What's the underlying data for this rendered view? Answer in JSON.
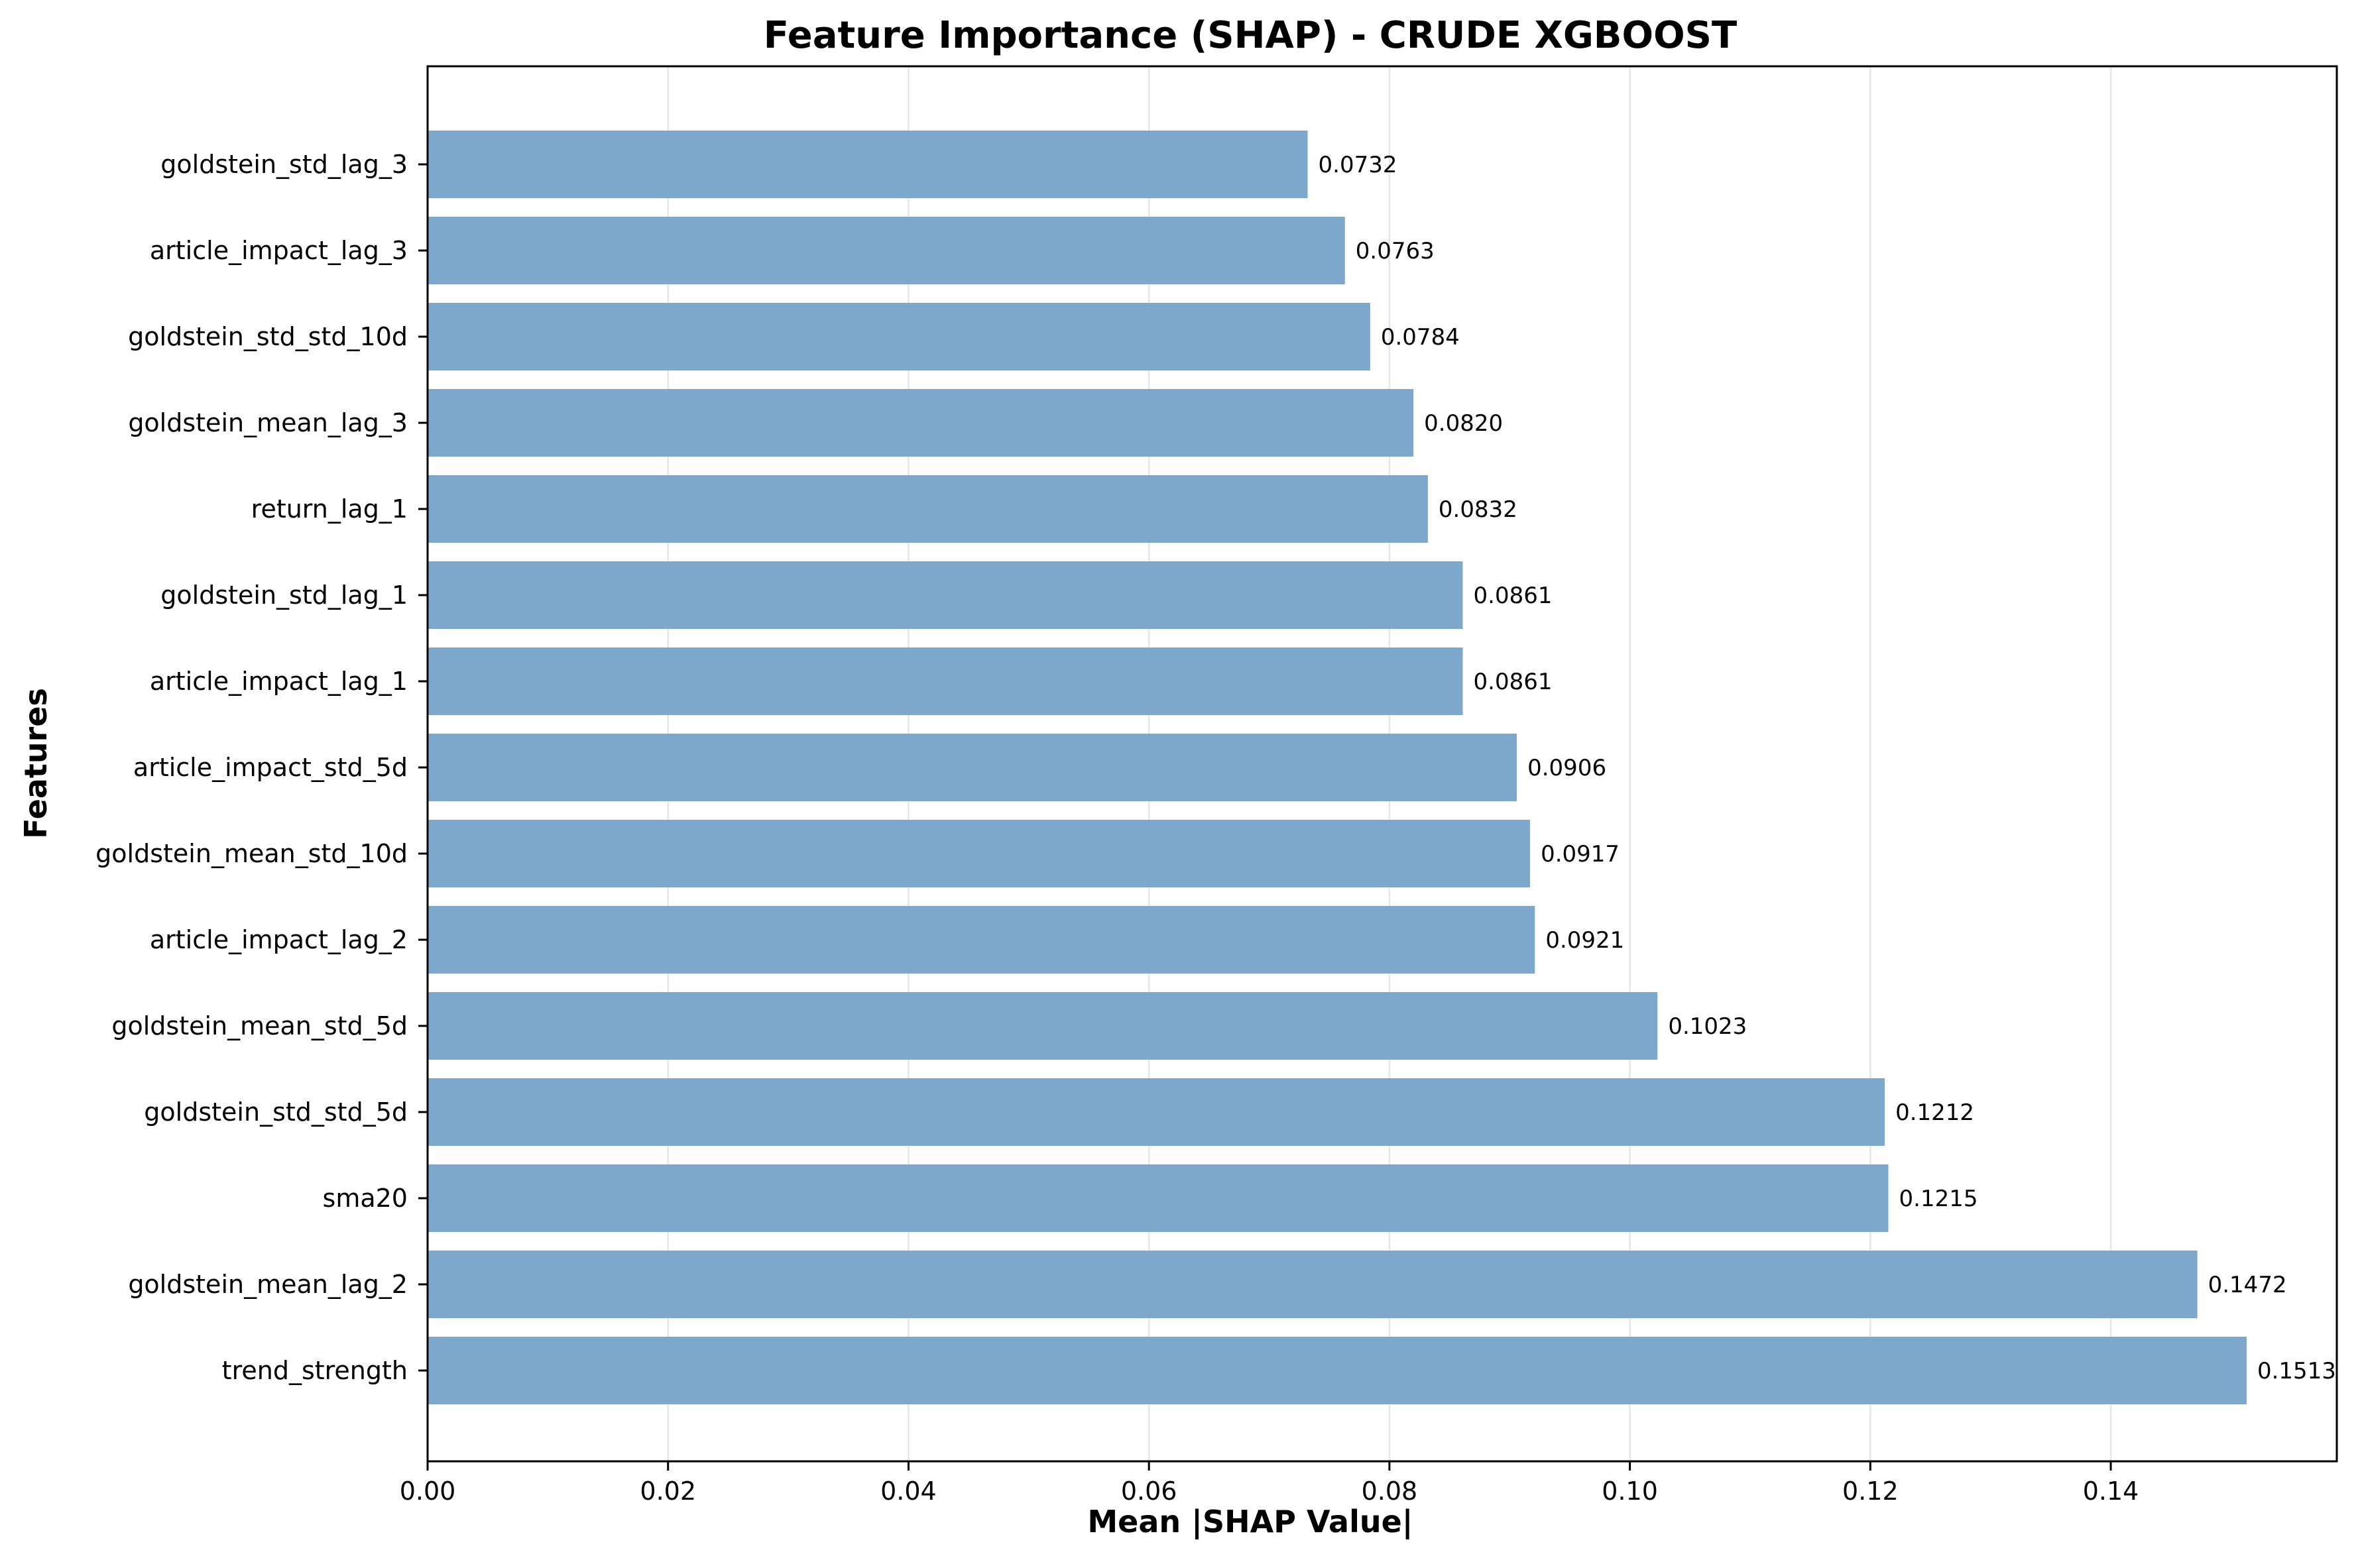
{
  "chart_data": {
    "type": "bar",
    "orientation": "horizontal",
    "title": "Feature Importance (SHAP) - CRUDE XGBOOST",
    "xlabel": "Mean |SHAP Value|",
    "ylabel": "Features",
    "xlim": [
      0,
      0.1588
    ],
    "xticks": [
      0.0,
      0.02,
      0.04,
      0.06,
      0.08,
      0.1,
      0.12,
      0.14
    ],
    "xtick_labels": [
      "0.00",
      "0.02",
      "0.04",
      "0.06",
      "0.08",
      "0.10",
      "0.12",
      "0.14"
    ],
    "grid": "x-axis vertical lines",
    "bar_color": "#7ea8cb",
    "categories": [
      "goldstein_std_lag_3",
      "article_impact_lag_3",
      "goldstein_std_std_10d",
      "goldstein_mean_lag_3",
      "return_lag_1",
      "goldstein_std_lag_1",
      "article_impact_lag_1",
      "article_impact_std_5d",
      "goldstein_mean_std_10d",
      "article_impact_lag_2",
      "goldstein_mean_std_5d",
      "goldstein_std_std_5d",
      "sma20",
      "goldstein_mean_lag_2",
      "trend_strength"
    ],
    "values": [
      0.0732,
      0.0763,
      0.0784,
      0.082,
      0.0832,
      0.0861,
      0.0861,
      0.0906,
      0.0917,
      0.0921,
      0.1023,
      0.1212,
      0.1215,
      0.1472,
      0.1513
    ],
    "value_labels": [
      "0.0732",
      "0.0763",
      "0.0784",
      "0.0820",
      "0.0832",
      "0.0861",
      "0.0861",
      "0.0906",
      "0.0917",
      "0.0921",
      "0.1023",
      "0.1212",
      "0.1215",
      "0.1472",
      "0.1513"
    ]
  }
}
